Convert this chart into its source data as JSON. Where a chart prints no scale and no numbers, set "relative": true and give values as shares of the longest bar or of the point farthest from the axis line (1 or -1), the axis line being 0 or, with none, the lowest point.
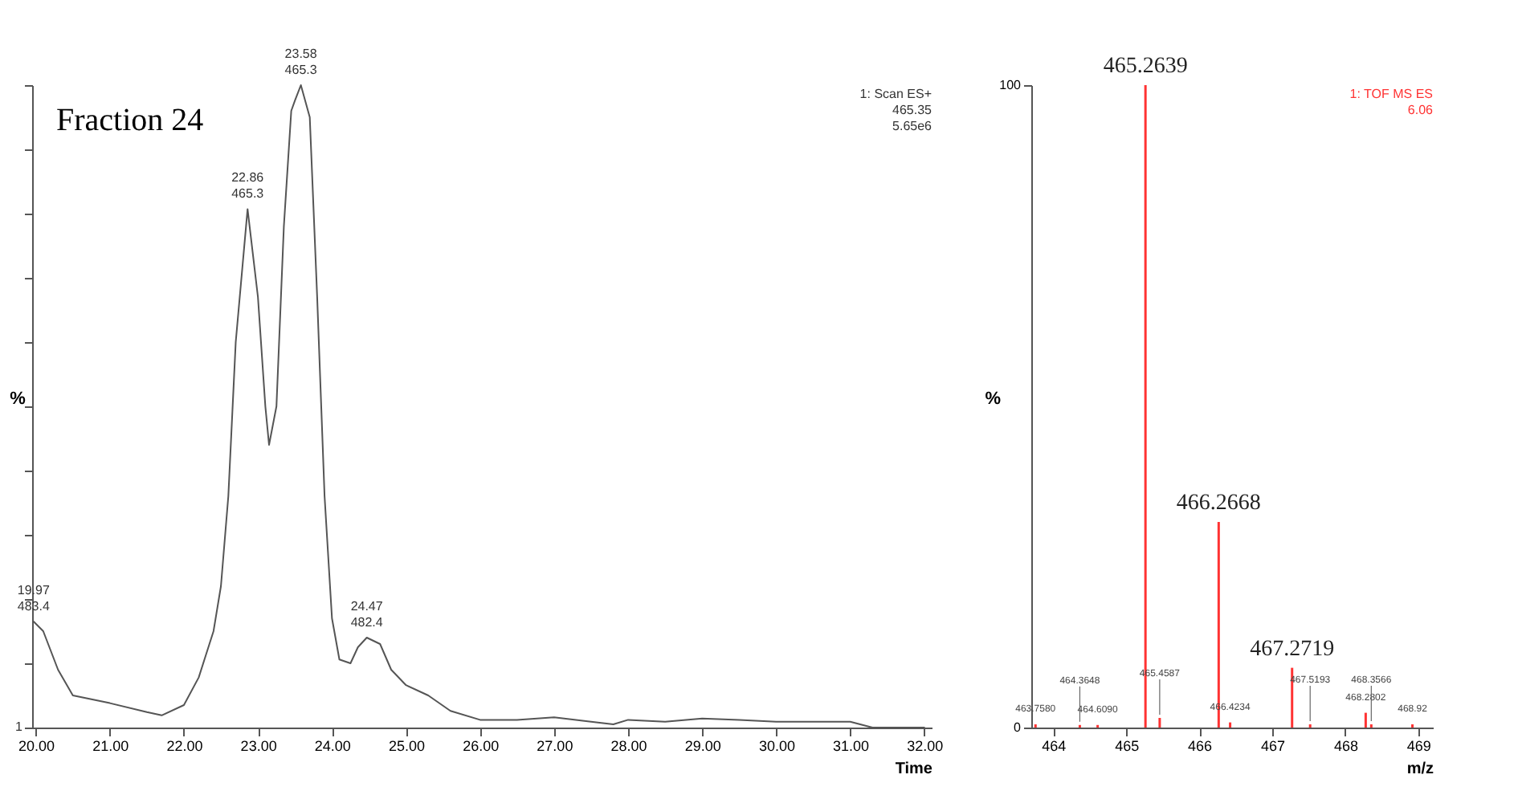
{
  "chart_data": [
    {
      "type": "line",
      "title": "Fraction 24",
      "xlabel": "Time",
      "ylabel": "%",
      "relative": true,
      "color": "#555555",
      "marker": "none",
      "line_style": "solid",
      "grid": false,
      "xlim": [
        19.95,
        32.1
      ],
      "xticks": [
        {
          "value": 20,
          "label": "20.00"
        },
        {
          "value": 21,
          "label": "21.00"
        },
        {
          "value": 22,
          "label": "22.00"
        },
        {
          "value": 23,
          "label": "23.00"
        },
        {
          "value": 24,
          "label": "24.00"
        },
        {
          "value": 25,
          "label": "25.00"
        },
        {
          "value": 26,
          "label": "26.00"
        },
        {
          "value": 27,
          "label": "27.00"
        },
        {
          "value": 28,
          "label": "28.00"
        },
        {
          "value": 29,
          "label": "29.00"
        },
        {
          "value": 30,
          "label": "30.00"
        },
        {
          "value": 31,
          "label": "31.00"
        },
        {
          "value": 32,
          "label": "32.00"
        }
      ],
      "x": [
        19.97,
        20.1,
        20.3,
        20.5,
        21.0,
        21.5,
        21.7,
        22.0,
        22.2,
        22.4,
        22.5,
        22.6,
        22.7,
        22.86,
        23.0,
        23.1,
        23.15,
        23.25,
        23.35,
        23.45,
        23.5,
        23.58,
        23.7,
        23.8,
        23.9,
        24.0,
        24.1,
        24.25,
        24.35,
        24.47,
        24.65,
        24.8,
        25.0,
        25.3,
        25.6,
        26.0,
        26.5,
        27.0,
        27.5,
        27.8,
        28.0,
        28.5,
        29.0,
        29.5,
        30.0,
        30.5,
        31.0,
        31.3,
        32.0
      ],
      "values": [
        0.165,
        0.15,
        0.09,
        0.05,
        0.038,
        0.024,
        0.019,
        0.035,
        0.078,
        0.15,
        0.22,
        0.36,
        0.6,
        0.807,
        0.67,
        0.5,
        0.44,
        0.5,
        0.78,
        0.96,
        0.976,
        1.0,
        0.95,
        0.67,
        0.36,
        0.17,
        0.106,
        0.1,
        0.125,
        0.14,
        0.13,
        0.09,
        0.066,
        0.05,
        0.026,
        0.012,
        0.012,
        0.016,
        0.009,
        0.005,
        0.012,
        0.009,
        0.014,
        0.012,
        0.009,
        0.009,
        0.009,
        0.0,
        0.0
      ],
      "annotations": [
        {
          "text": "19.97\n483.4",
          "x": 19.97,
          "y": 0.165
        },
        {
          "text": "22.86\n465.3",
          "x": 22.86,
          "y": 0.807
        },
        {
          "text": "23.58\n465.3",
          "x": 23.58,
          "y": 1.0
        },
        {
          "text": "24.47\n482.4",
          "x": 24.47,
          "y": 0.14
        },
        "1",
        "1: Scan ES+\n465.35\n5.65e6"
      ]
    },
    {
      "type": "bar",
      "xlabel": "m/z",
      "ylabel": "%",
      "color": "#ff3333",
      "grid": false,
      "xlim": [
        463.7,
        469.2
      ],
      "xticks": [
        464,
        465,
        466,
        467,
        468,
        469
      ],
      "ylim": [
        0,
        100
      ],
      "yticks": [
        0,
        100
      ],
      "x": [
        463.758,
        464.3648,
        464.609,
        465.2639,
        465.4587,
        466.2668,
        466.4234,
        467.2719,
        467.5193,
        468.2802,
        468.3566,
        468.92
      ],
      "values": [
        0.5,
        0.4,
        0.4,
        100,
        1.5,
        32,
        0.8,
        9.3,
        0.5,
        2.3,
        0.5,
        0.5
      ],
      "annotations": [
        {
          "text": "463.7580",
          "x": 463.758,
          "y": 0.5
        },
        {
          "text": "464.3648",
          "x": 464.3648,
          "y": 0.4
        },
        {
          "text": "464.6090",
          "x": 464.609,
          "y": 0.4
        },
        {
          "text": "465.2639",
          "x": 465.2639,
          "y": 100
        },
        {
          "text": "465.4587",
          "x": 465.4587,
          "y": 1.5
        },
        {
          "text": "466.2668",
          "x": 466.2668,
          "y": 32
        },
        {
          "text": "466.4234",
          "x": 466.4234,
          "y": 0.8
        },
        {
          "text": "467.2719",
          "x": 467.2719,
          "y": 9.3
        },
        {
          "text": "467.5193",
          "x": 467.5193,
          "y": 0.5
        },
        {
          "text": "468.2802",
          "x": 468.2802,
          "y": 2.3
        },
        {
          "text": "468.3566",
          "x": 468.3566,
          "y": 0.5
        },
        {
          "text": "468.92",
          "x": 468.92,
          "y": 0.5
        },
        "1: TOF MS ES\n6.06"
      ]
    }
  ]
}
